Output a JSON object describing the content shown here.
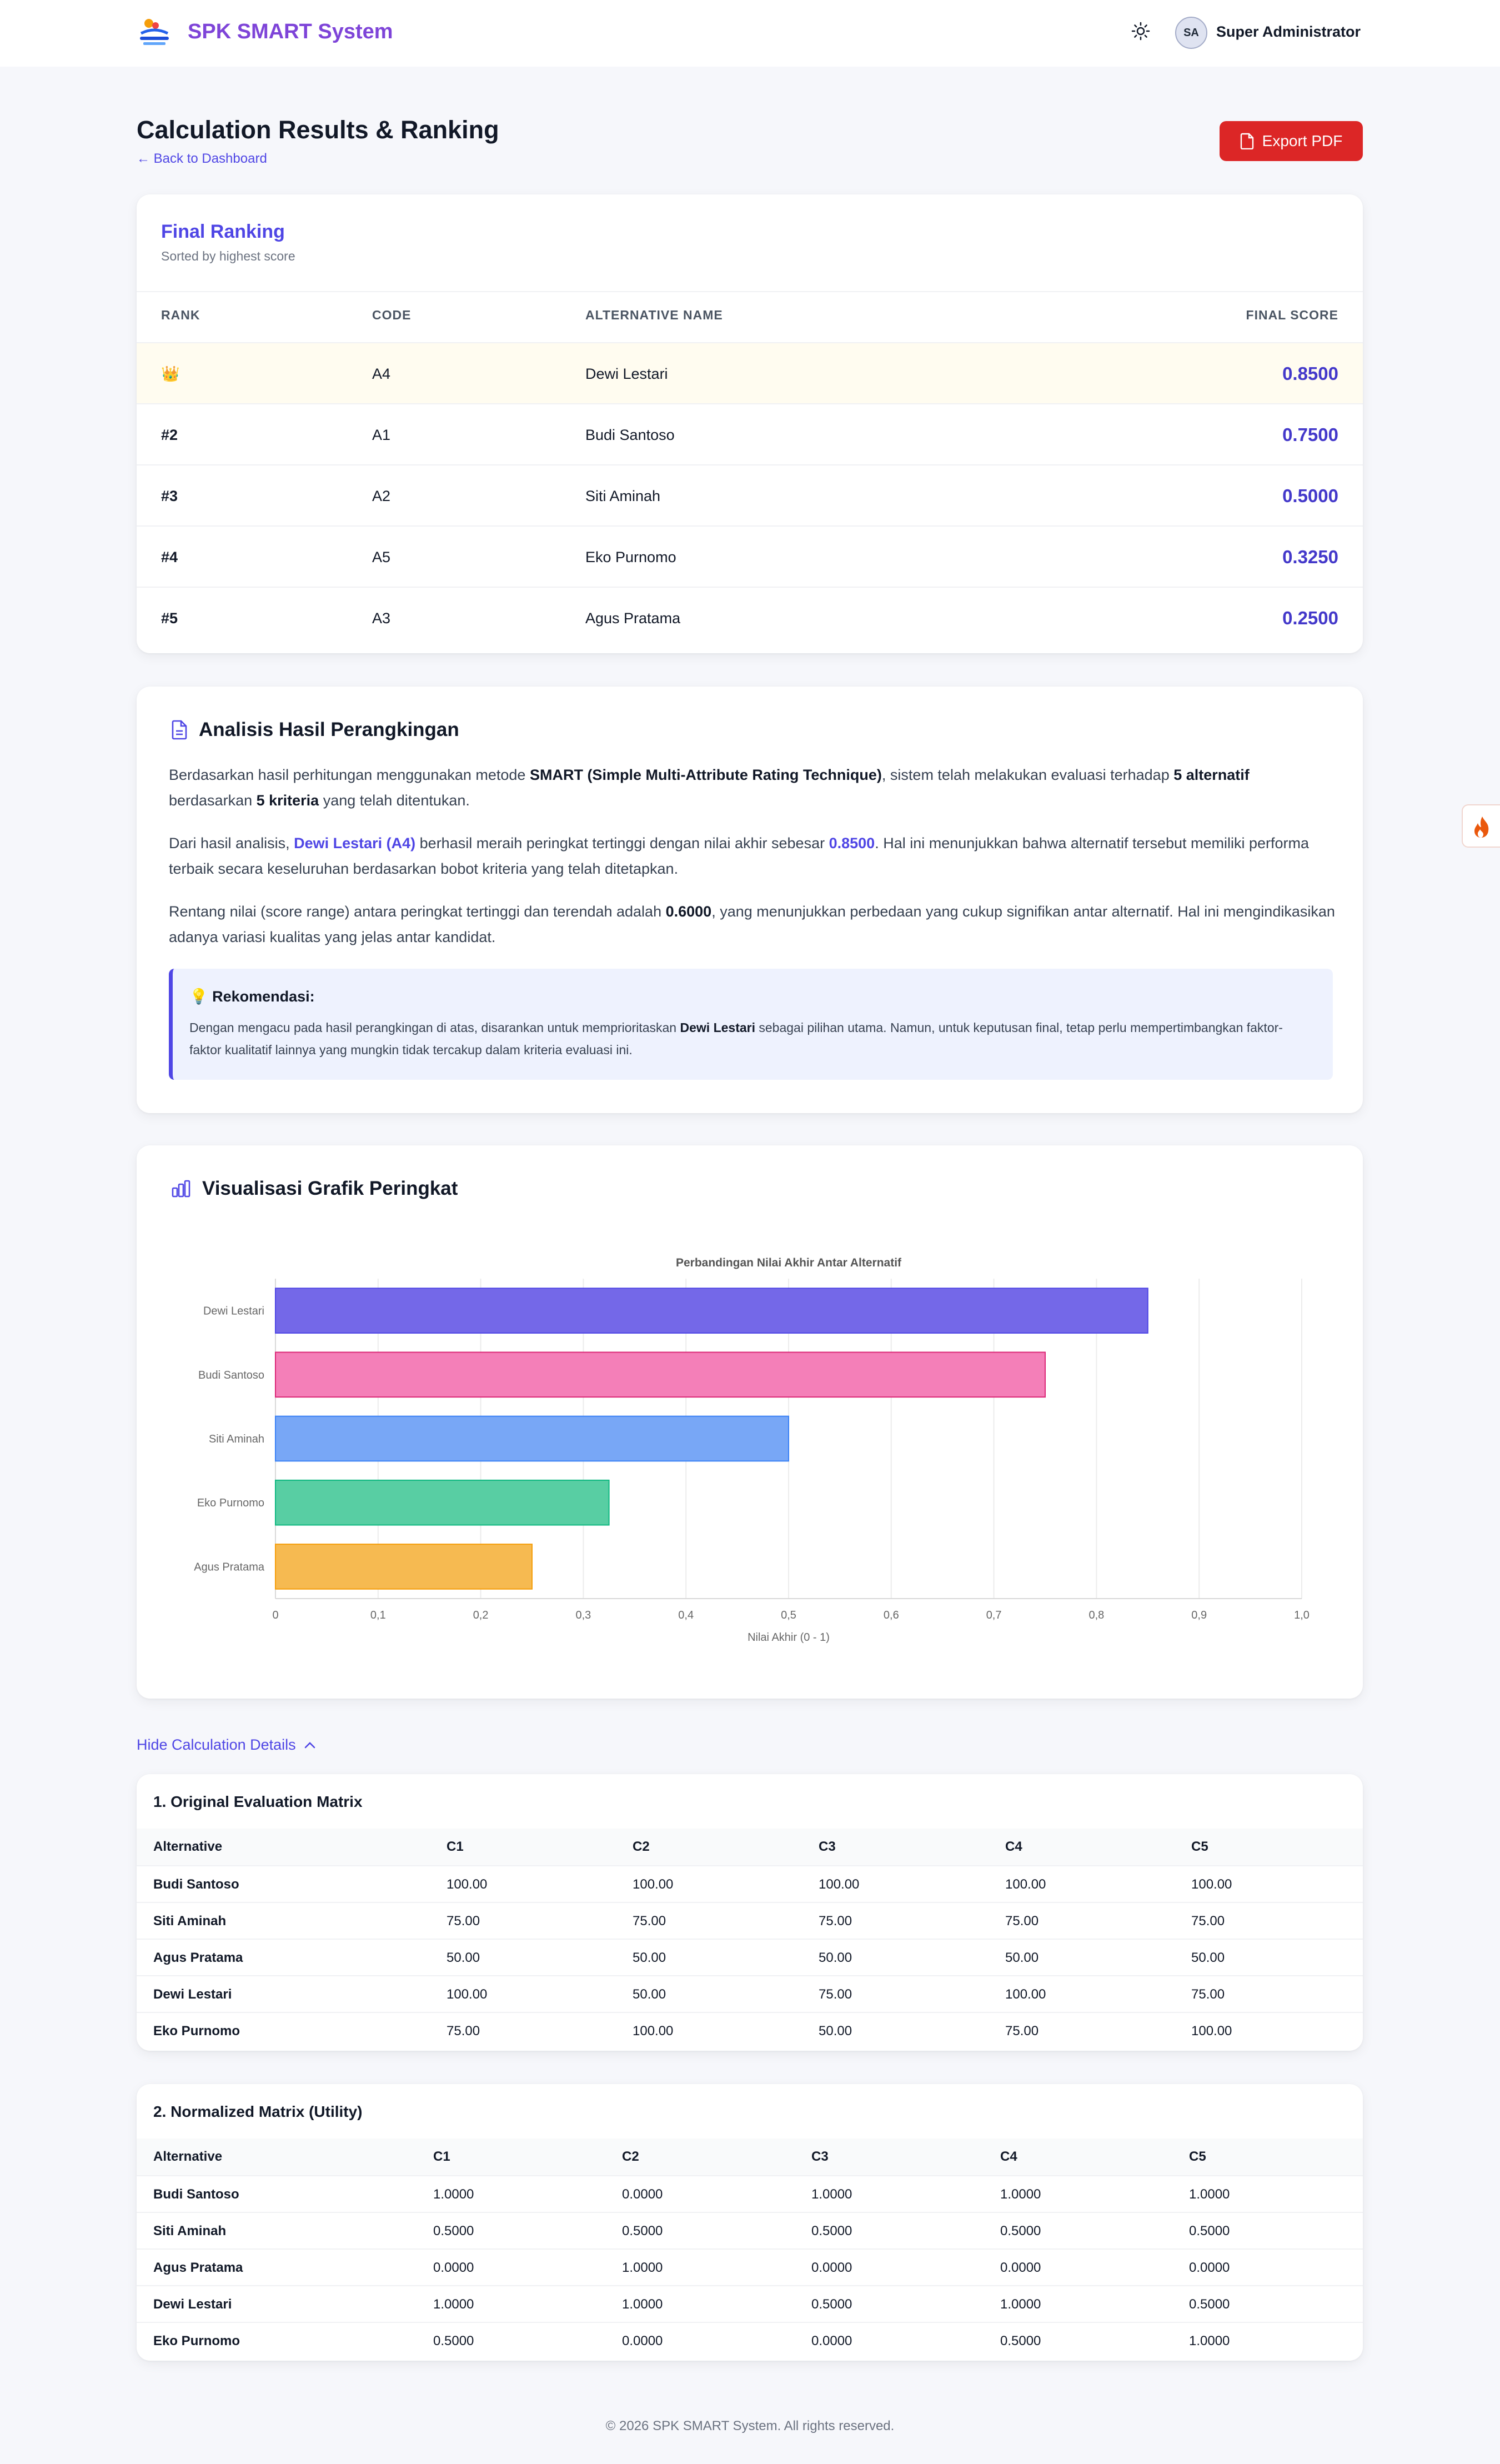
{
  "navbar": {
    "brand": "SPK SMART System",
    "user_initials": "SA",
    "user_name": "Super Administrator"
  },
  "header": {
    "title": "Calculation Results & Ranking",
    "back_label": "← Back to Dashboard",
    "export_label": "Export PDF"
  },
  "ranking": {
    "title": "Final Ranking",
    "subtitle": "Sorted by highest score",
    "columns": [
      "RANK",
      "CODE",
      "ALTERNATIVE NAME",
      "FINAL SCORE"
    ],
    "rows": [
      {
        "rank": "👑",
        "code": "A4",
        "name": "Dewi Lestari",
        "score": "0.8500"
      },
      {
        "rank": "#2",
        "code": "A1",
        "name": "Budi Santoso",
        "score": "0.7500"
      },
      {
        "rank": "#3",
        "code": "A2",
        "name": "Siti Aminah",
        "score": "0.5000"
      },
      {
        "rank": "#4",
        "code": "A5",
        "name": "Eko Purnomo",
        "score": "0.3250"
      },
      {
        "rank": "#5",
        "code": "A3",
        "name": "Agus Pratama",
        "score": "0.2500"
      }
    ]
  },
  "analysis": {
    "title": "Analisis Hasil Perangkingan",
    "p1": {
      "a": "Berdasarkan hasil perhitungan menggunakan metode ",
      "b": "SMART (Simple Multi-Attribute Rating Technique)",
      "c": ", sistem telah melakukan evaluasi terhadap ",
      "d": "5 alternatif",
      "e": " berdasarkan ",
      "f": "5 kriteria",
      "g": " yang telah ditentukan."
    },
    "p2": {
      "a": "Dari hasil analisis, ",
      "b": "Dewi Lestari (A4)",
      "c": " berhasil meraih peringkat tertinggi dengan nilai akhir sebesar ",
      "d": "0.8500",
      "e": ". Hal ini menunjukkan bahwa alternatif tersebut memiliki performa terbaik secara keseluruhan berdasarkan bobot kriteria yang telah ditetapkan."
    },
    "p3": {
      "a": "Rentang nilai (score range) antara peringkat tertinggi dan terendah adalah ",
      "b": "0.6000",
      "c": ", yang menunjukkan perbedaan yang cukup signifikan antar alternatif. Hal ini mengindikasikan adanya variasi kualitas yang jelas antar kandidat."
    },
    "reco": {
      "title": "💡 Rekomendasi:",
      "a": "Dengan mengacu pada hasil perangkingan di atas, disarankan untuk memprioritaskan ",
      "b": "Dewi Lestari",
      "c": " sebagai pilihan utama. Namun, untuk keputusan final, tetap perlu mempertimbangkan faktor-faktor kualitatif lainnya yang mungkin tidak tercakup dalam kriteria evaluasi ini."
    }
  },
  "chart_section": {
    "title": "Visualisasi Grafik Peringkat"
  },
  "chart_data": {
    "type": "bar",
    "orientation": "horizontal",
    "title": "Perbandingan Nilai Akhir Antar Alternatif",
    "xlabel": "Nilai Akhir (0 - 1)",
    "ylabel": "",
    "categories": [
      "Dewi Lestari",
      "Budi Santoso",
      "Siti Aminah",
      "Eko Purnomo",
      "Agus Pratama"
    ],
    "values": [
      0.85,
      0.75,
      0.5,
      0.325,
      0.25
    ],
    "xlim": [
      0,
      1
    ],
    "ticks": [
      "0",
      "0,1",
      "0,2",
      "0,3",
      "0,4",
      "0,5",
      "0,6",
      "0,7",
      "0,8",
      "0,9",
      "1,0"
    ],
    "colors": [
      "#7468e8",
      "#f47fb8",
      "#78a7f6",
      "#58ceA3",
      "#f6ba51"
    ],
    "border_colors": [
      "#4f46e5",
      "#db2777",
      "#3b82f6",
      "#10b981",
      "#f59e0b"
    ],
    "grid": true,
    "legend": "none"
  },
  "toggle": {
    "label": "Hide Calculation Details"
  },
  "matrix1": {
    "title": "1. Original Evaluation Matrix",
    "columns": [
      "Alternative",
      "C1",
      "C2",
      "C3",
      "C4",
      "C5"
    ],
    "rows": [
      [
        "Budi Santoso",
        "100.00",
        "100.00",
        "100.00",
        "100.00",
        "100.00"
      ],
      [
        "Siti Aminah",
        "75.00",
        "75.00",
        "75.00",
        "75.00",
        "75.00"
      ],
      [
        "Agus Pratama",
        "50.00",
        "50.00",
        "50.00",
        "50.00",
        "50.00"
      ],
      [
        "Dewi Lestari",
        "100.00",
        "50.00",
        "75.00",
        "100.00",
        "75.00"
      ],
      [
        "Eko Purnomo",
        "75.00",
        "100.00",
        "50.00",
        "75.00",
        "100.00"
      ]
    ]
  },
  "matrix2": {
    "title": "2. Normalized Matrix (Utility)",
    "columns": [
      "Alternative",
      "C1",
      "C2",
      "C3",
      "C4",
      "C5"
    ],
    "rows": [
      [
        "Budi Santoso",
        "1.0000",
        "0.0000",
        "1.0000",
        "1.0000",
        "1.0000"
      ],
      [
        "Siti Aminah",
        "0.5000",
        "0.5000",
        "0.5000",
        "0.5000",
        "0.5000"
      ],
      [
        "Agus Pratama",
        "0.0000",
        "1.0000",
        "0.0000",
        "0.0000",
        "0.0000"
      ],
      [
        "Dewi Lestari",
        "1.0000",
        "1.0000",
        "0.5000",
        "1.0000",
        "0.5000"
      ],
      [
        "Eko Purnomo",
        "0.5000",
        "0.0000",
        "0.0000",
        "0.5000",
        "1.0000"
      ]
    ]
  },
  "footer": {
    "text": "© 2026 SPK SMART System. All rights reserved."
  }
}
